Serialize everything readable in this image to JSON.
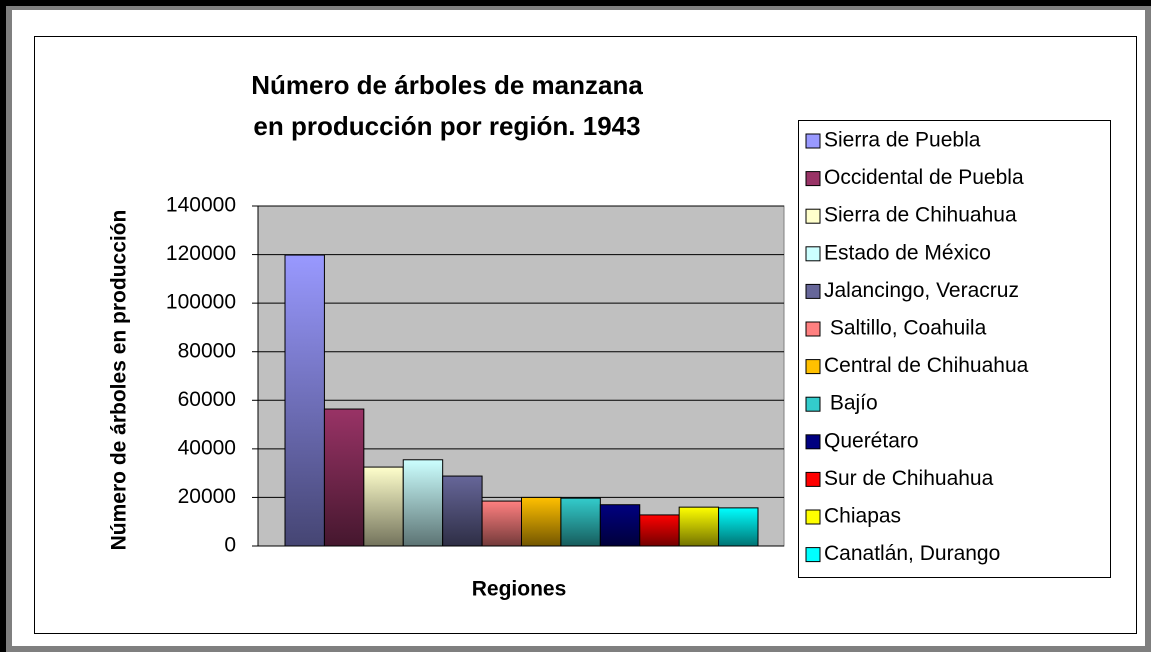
{
  "chart_data": {
    "type": "bar",
    "title": "Número de árboles de manzana\nen producción por región. 1943",
    "ylabel": "Número de árboles en producción",
    "xlabel": "Regiones",
    "ylim": [
      0,
      140000
    ],
    "yticks": [
      0,
      20000,
      40000,
      60000,
      80000,
      100000,
      120000,
      140000
    ],
    "grid": true,
    "legend": "right",
    "series": [
      {
        "name": "Sierra de Puebla",
        "color": "#9999ff",
        "values": [
          119800
        ]
      },
      {
        "name": "Occidental de Puebla",
        "color": "#993366",
        "values": [
          56400
        ]
      },
      {
        "name": "Sierra de Chihuahua",
        "color": "#ffffcc",
        "values": [
          32500
        ]
      },
      {
        "name": "Estado de México",
        "color": "#ccffff",
        "values": [
          35500
        ]
      },
      {
        "name": "Jalancingo, Veracruz",
        "color": "#666699",
        "values": [
          28800
        ]
      },
      {
        "name": " Saltillo, Coahuila",
        "color": "#ff8080",
        "values": [
          18500
        ]
      },
      {
        "name": "Central de Chihuahua",
        "color": "#ffc000",
        "values": [
          20000
        ]
      },
      {
        "name": " Bajío",
        "color": "#33cccc",
        "values": [
          19700
        ]
      },
      {
        "name": "Querétaro",
        "color": "#000080",
        "values": [
          17000
        ]
      },
      {
        "name": "Sur de Chihuahua",
        "color": "#ff0000",
        "values": [
          12800
        ]
      },
      {
        "name": "Chiapas",
        "color": "#ffff00",
        "values": [
          16000
        ]
      },
      {
        "name": "Canatlán, Durango",
        "color": "#00ffff",
        "values": [
          15700
        ]
      }
    ]
  }
}
